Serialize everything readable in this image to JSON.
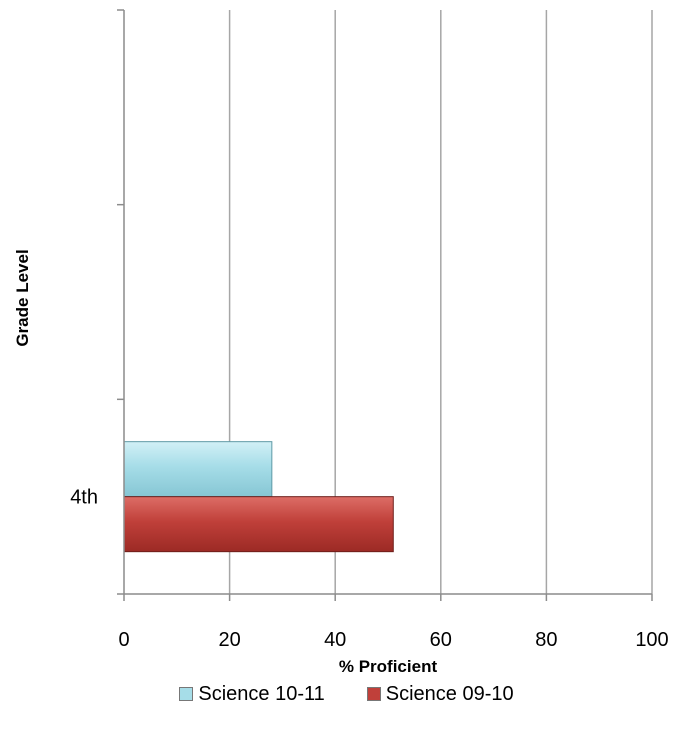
{
  "chart_data": {
    "type": "bar",
    "orientation": "horizontal",
    "categories": [
      "4th",
      "",
      ""
    ],
    "series": [
      {
        "name": "Science 10-11",
        "values": [
          28,
          null,
          null
        ],
        "color": "#a6dde8"
      },
      {
        "name": "Science 09-10",
        "values": [
          51,
          null,
          null
        ],
        "color": "#c0403a"
      }
    ],
    "xlabel": "% Proficient",
    "ylabel": "Grade Level",
    "xlim": [
      0,
      100
    ],
    "xticks": [
      0,
      20,
      40,
      60,
      80,
      100
    ],
    "grid": "vertical",
    "legend": "bottom"
  }
}
